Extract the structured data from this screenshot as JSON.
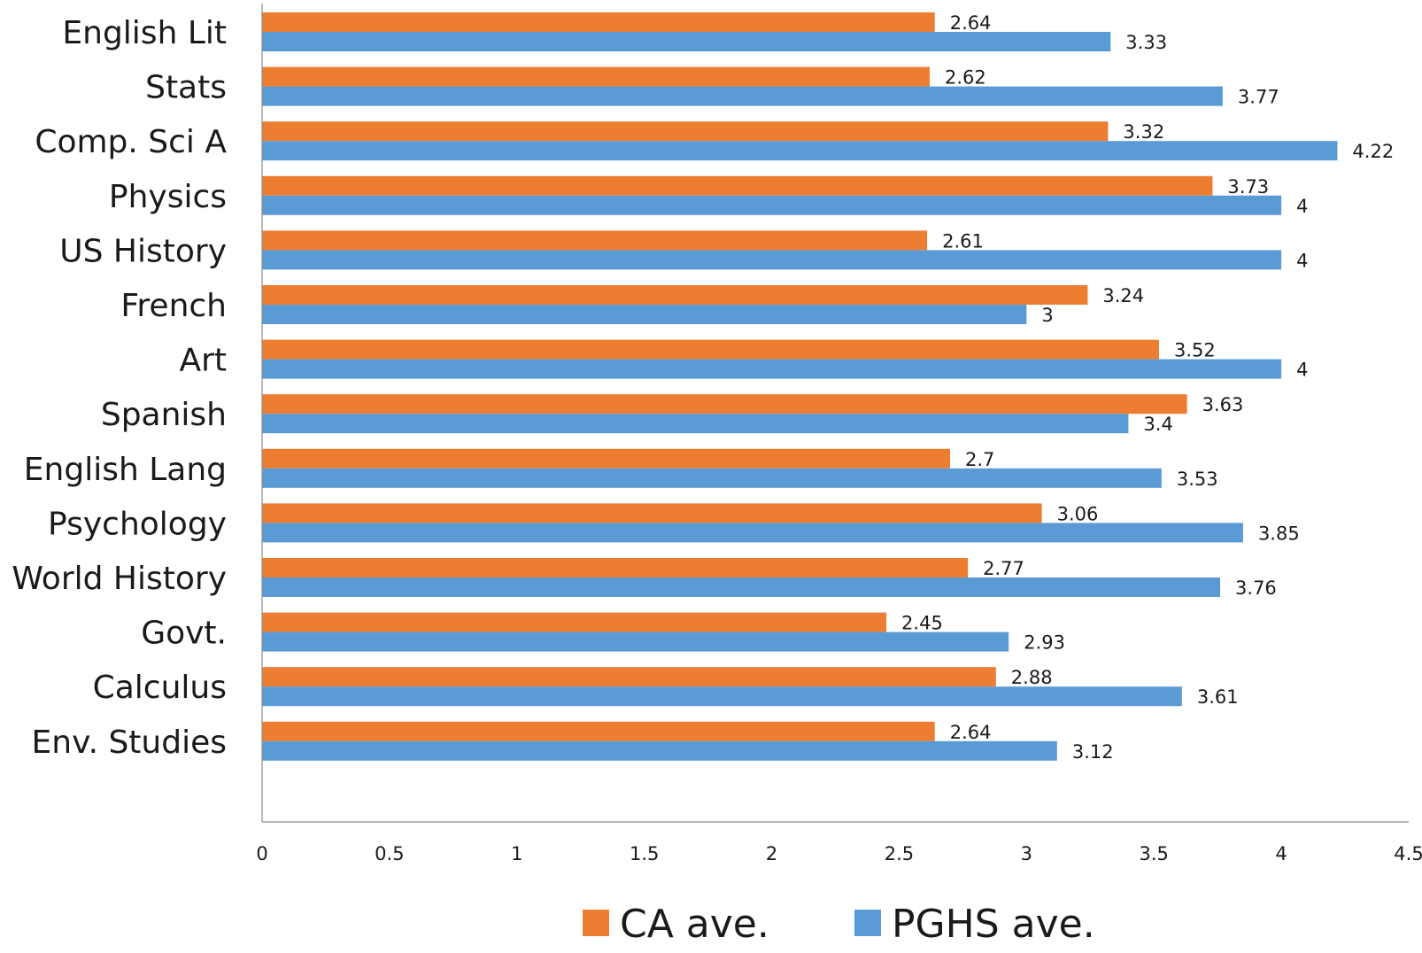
{
  "chart_data": {
    "type": "bar",
    "orientation": "horizontal",
    "categories": [
      "English Lit",
      "Stats",
      "Comp. Sci A",
      "Physics",
      "US History",
      "French",
      "Art",
      "Spanish",
      "English Lang",
      "Psychology",
      "World History",
      "Govt.",
      "Calculus",
      "Env. Studies"
    ],
    "series": [
      {
        "name": "CA ave.",
        "color": "#ED7D31",
        "values": [
          2.64,
          2.62,
          3.32,
          3.73,
          2.61,
          3.24,
          3.52,
          3.63,
          2.7,
          3.06,
          2.77,
          2.45,
          2.88,
          2.64
        ],
        "labels": [
          "2.64",
          "2.62",
          "3.32",
          "3.73",
          "2.61",
          "3.24",
          "3.52",
          "3.63",
          "2.7",
          "3.06",
          "2.77",
          "2.45",
          "2.88",
          "2.64"
        ]
      },
      {
        "name": "PGHS ave.",
        "color": "#5B9BD5",
        "values": [
          3.33,
          3.77,
          4.22,
          4,
          4,
          3,
          4,
          3.4,
          3.53,
          3.85,
          3.76,
          2.93,
          3.61,
          3.12
        ],
        "labels": [
          "3.33",
          "3.77",
          "4.22",
          "4",
          "4",
          "3",
          "4",
          "3.4",
          "3.53",
          "3.85",
          "3.76",
          "2.93",
          "3.61",
          "3.12"
        ]
      }
    ],
    "xlim": [
      0,
      4.5
    ],
    "xticks": [
      "0",
      "0.5",
      "1",
      "1.5",
      "2",
      "2.5",
      "3",
      "3.5",
      "4",
      "4.5"
    ],
    "title": "",
    "xlabel": "",
    "ylabel": "",
    "grid": false,
    "legend_position": "bottom"
  }
}
